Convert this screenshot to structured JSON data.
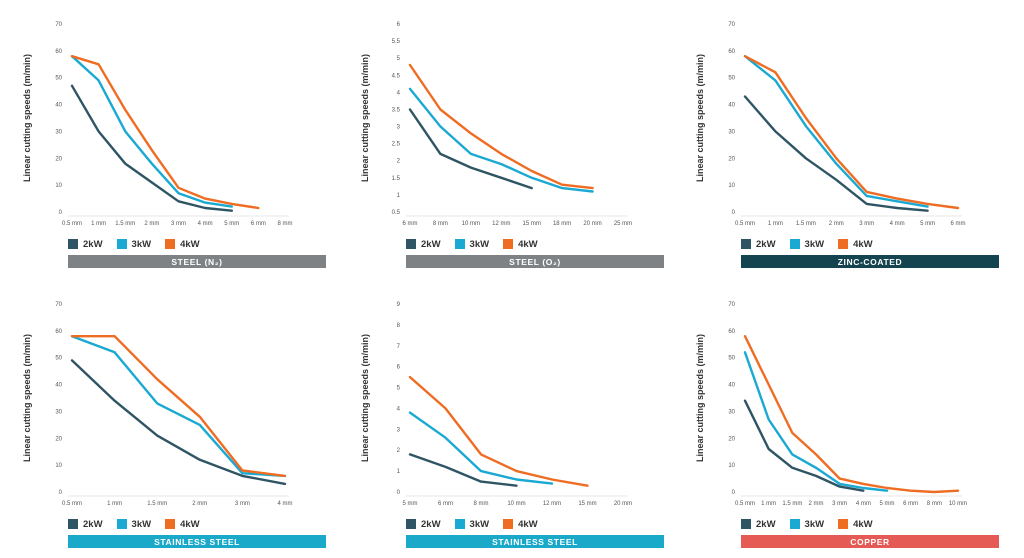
{
  "legend": {
    "entries": [
      {
        "name": "2kW",
        "color": "#2f5565"
      },
      {
        "name": "3kW",
        "color": "#1aa9d2"
      },
      {
        "name": "4kW",
        "color": "#ef6c23"
      }
    ]
  },
  "chart_data": [
    {
      "type": "line",
      "title": "STEEL (N₂)",
      "banner_color": "#7f8285",
      "ylabel": "Linear cutting speeds (m/min)",
      "ylim": [
        0,
        70
      ],
      "yticks": [
        0,
        10,
        20,
        30,
        40,
        50,
        60,
        70
      ],
      "categories": [
        "0.5 mm",
        "1 mm",
        "1.5 mm",
        "2 mm",
        "3 mm",
        "4 mm",
        "5 mm",
        "6 mm",
        "8 mm"
      ],
      "series": [
        {
          "name": "2kW",
          "values": [
            47,
            30,
            18,
            11,
            4,
            1.5,
            0.5,
            null,
            null
          ]
        },
        {
          "name": "3kW",
          "values": [
            58,
            49,
            30,
            18,
            7,
            3.5,
            2,
            null,
            null
          ]
        },
        {
          "name": "4kW",
          "values": [
            58,
            55,
            38,
            23,
            9,
            5,
            3,
            1.5,
            null
          ]
        }
      ]
    },
    {
      "type": "line",
      "title": "STEEL (O₂)",
      "banner_color": "#7f8285",
      "ylabel": "Linear cutting speeds (m/min)",
      "ylim": [
        0.5,
        6
      ],
      "yticks": [
        0.5,
        1,
        1.5,
        2,
        2.5,
        3,
        3.5,
        4,
        4.5,
        5,
        5.5,
        6
      ],
      "categories": [
        "6 mm",
        "8 mm",
        "10 mm",
        "12 mm",
        "15 mm",
        "18 mm",
        "20 mm",
        "25 mm"
      ],
      "series": [
        {
          "name": "2kW",
          "values": [
            3.5,
            2.2,
            1.8,
            1.5,
            1.2,
            null,
            null,
            null
          ]
        },
        {
          "name": "3kW",
          "values": [
            4.1,
            3.0,
            2.2,
            1.9,
            1.5,
            1.2,
            1.1,
            null
          ]
        },
        {
          "name": "4kW",
          "values": [
            4.8,
            3.5,
            2.8,
            2.2,
            1.7,
            1.3,
            1.2,
            null
          ]
        }
      ]
    },
    {
      "type": "line",
      "title": "ZINC-COATED",
      "banner_color": "#14444f",
      "ylabel": "Linear cutting speeds (m/min)",
      "ylim": [
        0,
        70
      ],
      "yticks": [
        0,
        10,
        20,
        30,
        40,
        50,
        60,
        70
      ],
      "categories": [
        "0.5 mm",
        "1 mm",
        "1.5 mm",
        "2 mm",
        "3 mm",
        "4 mm",
        "5 mm",
        "6 mm"
      ],
      "series": [
        {
          "name": "2kW",
          "values": [
            43,
            30,
            20,
            12,
            3,
            1.5,
            0.5,
            null
          ]
        },
        {
          "name": "3kW",
          "values": [
            58,
            49,
            32,
            18,
            6,
            4,
            2,
            null
          ]
        },
        {
          "name": "4kW",
          "values": [
            58,
            52,
            35,
            20,
            7.5,
            5,
            3,
            1.5
          ]
        }
      ]
    },
    {
      "type": "line",
      "title": "STAINLESS STEEL",
      "banner_color": "#1aa9c9",
      "ylabel": "Linear cutting speeds (m/min)",
      "ylim": [
        0,
        70
      ],
      "yticks": [
        0,
        10,
        20,
        30,
        40,
        50,
        60,
        70
      ],
      "categories": [
        "0.5 mm",
        "1 mm",
        "1.5 mm",
        "2 mm",
        "3 mm",
        "4 mm"
      ],
      "series": [
        {
          "name": "2kW",
          "values": [
            49,
            34,
            21,
            12,
            6,
            3
          ]
        },
        {
          "name": "3kW",
          "values": [
            58,
            52,
            33,
            25,
            7,
            6
          ]
        },
        {
          "name": "4kW",
          "values": [
            58,
            58,
            42,
            28,
            8,
            6
          ]
        }
      ]
    },
    {
      "type": "line",
      "title": "STAINLESS STEEL",
      "banner_color": "#1aa9c9",
      "ylabel": "Linear cutting speeds (m/min)",
      "ylim": [
        0,
        9
      ],
      "yticks": [
        0,
        1,
        2,
        3,
        4,
        5,
        6,
        7,
        8,
        9
      ],
      "categories": [
        "5 mm",
        "6 mm",
        "8 mm",
        "10 mm",
        "12 mm",
        "15 mm",
        "20 mm"
      ],
      "series": [
        {
          "name": "2kW",
          "values": [
            1.8,
            1.2,
            0.5,
            0.3,
            null,
            null,
            null
          ]
        },
        {
          "name": "3kW",
          "values": [
            3.8,
            2.6,
            1.0,
            0.6,
            0.4,
            null,
            null
          ]
        },
        {
          "name": "4kW",
          "values": [
            5.5,
            4.0,
            1.8,
            1.0,
            0.6,
            0.3,
            null
          ]
        }
      ]
    },
    {
      "type": "line",
      "title": "COPPER",
      "banner_color": "#e65a55",
      "ylabel": "Linear cutting speeds (m/min)",
      "ylim": [
        0,
        70
      ],
      "yticks": [
        0,
        10,
        20,
        30,
        40,
        50,
        60,
        70
      ],
      "categories": [
        "0.5 mm",
        "1 mm",
        "1.5 mm",
        "2 mm",
        "3 mm",
        "4 mm",
        "5 mm",
        "6 mm",
        "8 mm",
        "10 mm"
      ],
      "series": [
        {
          "name": "2kW",
          "values": [
            34,
            16,
            9,
            6,
            2,
            0.5,
            null,
            null,
            null,
            null
          ]
        },
        {
          "name": "3kW",
          "values": [
            52,
            27,
            14,
            9,
            3,
            1.5,
            0.5,
            null,
            null,
            null
          ]
        },
        {
          "name": "4kW",
          "values": [
            58,
            40,
            22,
            14,
            5,
            3,
            1.5,
            0.5,
            0,
            0.5
          ]
        }
      ]
    }
  ]
}
